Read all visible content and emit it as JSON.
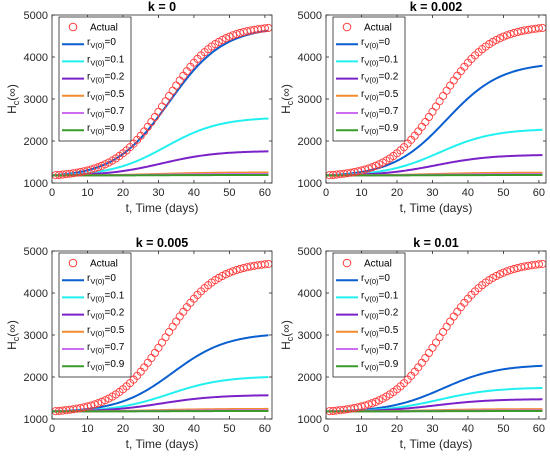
{
  "chart_data": [
    {
      "type": "line",
      "title": "k = 0",
      "xlabel": "t, Time (days)",
      "ylabel": {
        "main": "H",
        "sub": "c",
        "suffix": "(∞)"
      },
      "xlim": [
        0,
        62
      ],
      "ylim": [
        1000,
        5000
      ],
      "xticks": [
        "0",
        "10",
        "20",
        "30",
        "40",
        "50",
        "60"
      ],
      "yticks": [
        "1000",
        "2000",
        "3000",
        "4000",
        "5000"
      ],
      "legend": "top-left",
      "actual": {
        "name": "Actual",
        "color": "#ff3b3b",
        "x0": 1,
        "x1": 61,
        "start": 1180,
        "end": 4700,
        "mid": 32,
        "rate": 0.14
      },
      "series": [
        {
          "label_main": "r",
          "label_sub": "V(0)",
          "label_tail": "=0",
          "color": "#0a5fd0",
          "start": 1180,
          "end": 4640,
          "mid": 33,
          "rate": 0.13
        },
        {
          "label_main": "r",
          "label_sub": "V(0)",
          "label_tail": "=0.1",
          "color": "#22f0f0",
          "start": 1180,
          "end": 2540,
          "mid": 32,
          "rate": 0.13
        },
        {
          "label_main": "r",
          "label_sub": "V(0)",
          "label_tail": "=0.2",
          "color": "#7b21c8",
          "start": 1180,
          "end": 1755,
          "mid": 31,
          "rate": 0.13
        },
        {
          "label_main": "r",
          "label_sub": "V(0)",
          "label_tail": "=0.5",
          "color": "#f28c2e",
          "start": 1180,
          "end": 1250,
          "mid": 30,
          "rate": 0.13
        },
        {
          "label_main": "r",
          "label_sub": "V(0)",
          "label_tail": "=0.7",
          "color": "#cc6cf0",
          "start": 1180,
          "end": 1215,
          "mid": 30,
          "rate": 0.13
        },
        {
          "label_main": "r",
          "label_sub": "V(0)",
          "label_tail": "=0.9",
          "color": "#3a9a2a",
          "start": 1180,
          "end": 1190,
          "mid": 30,
          "rate": 0.13
        }
      ]
    },
    {
      "type": "line",
      "title": "k = 0.002",
      "xlabel": "t, Time (days)",
      "ylabel": {
        "main": "H",
        "sub": "c",
        "suffix": "(∞)"
      },
      "xlim": [
        0,
        62
      ],
      "ylim": [
        1000,
        5000
      ],
      "xticks": [
        "0",
        "10",
        "20",
        "30",
        "40",
        "50",
        "60"
      ],
      "yticks": [
        "1000",
        "2000",
        "3000",
        "4000",
        "5000"
      ],
      "legend": "top-left",
      "actual": {
        "name": "Actual",
        "color": "#ff3b3b",
        "x0": 1,
        "x1": 61,
        "start": 1180,
        "end": 4700,
        "mid": 32,
        "rate": 0.14
      },
      "series": [
        {
          "label_main": "r",
          "label_sub": "V(0)",
          "label_tail": "=0",
          "color": "#0a5fd0",
          "start": 1180,
          "end": 3800,
          "mid": 34,
          "rate": 0.13
        },
        {
          "label_main": "r",
          "label_sub": "V(0)",
          "label_tail": "=0.1",
          "color": "#22f0f0",
          "start": 1180,
          "end": 2270,
          "mid": 32,
          "rate": 0.13
        },
        {
          "label_main": "r",
          "label_sub": "V(0)",
          "label_tail": "=0.2",
          "color": "#7b21c8",
          "start": 1180,
          "end": 1665,
          "mid": 31,
          "rate": 0.13
        },
        {
          "label_main": "r",
          "label_sub": "V(0)",
          "label_tail": "=0.5",
          "color": "#f28c2e",
          "start": 1180,
          "end": 1245,
          "mid": 30,
          "rate": 0.13
        },
        {
          "label_main": "r",
          "label_sub": "V(0)",
          "label_tail": "=0.7",
          "color": "#cc6cf0",
          "start": 1180,
          "end": 1212,
          "mid": 30,
          "rate": 0.13
        },
        {
          "label_main": "r",
          "label_sub": "V(0)",
          "label_tail": "=0.9",
          "color": "#3a9a2a",
          "start": 1180,
          "end": 1190,
          "mid": 30,
          "rate": 0.13
        }
      ]
    },
    {
      "type": "line",
      "title": "k = 0.005",
      "xlabel": "t, Time (days)",
      "ylabel": {
        "main": "H",
        "sub": "c",
        "suffix": "(∞)"
      },
      "xlim": [
        0,
        62
      ],
      "ylim": [
        1000,
        5000
      ],
      "xticks": [
        "0",
        "10",
        "20",
        "30",
        "40",
        "50",
        "60"
      ],
      "yticks": [
        "1000",
        "2000",
        "3000",
        "4000",
        "5000"
      ],
      "legend": "top-left",
      "actual": {
        "name": "Actual",
        "color": "#ff3b3b",
        "x0": 1,
        "x1": 61,
        "start": 1180,
        "end": 4700,
        "mid": 32,
        "rate": 0.14
      },
      "series": [
        {
          "label_main": "r",
          "label_sub": "V(0)",
          "label_tail": "=0",
          "color": "#0a5fd0",
          "start": 1180,
          "end": 3000,
          "mid": 34,
          "rate": 0.13
        },
        {
          "label_main": "r",
          "label_sub": "V(0)",
          "label_tail": "=0.1",
          "color": "#22f0f0",
          "start": 1180,
          "end": 2000,
          "mid": 33,
          "rate": 0.13
        },
        {
          "label_main": "r",
          "label_sub": "V(0)",
          "label_tail": "=0.2",
          "color": "#7b21c8",
          "start": 1180,
          "end": 1565,
          "mid": 31,
          "rate": 0.13
        },
        {
          "label_main": "r",
          "label_sub": "V(0)",
          "label_tail": "=0.5",
          "color": "#f28c2e",
          "start": 1180,
          "end": 1240,
          "mid": 30,
          "rate": 0.13
        },
        {
          "label_main": "r",
          "label_sub": "V(0)",
          "label_tail": "=0.7",
          "color": "#cc6cf0",
          "start": 1180,
          "end": 1208,
          "mid": 30,
          "rate": 0.13
        },
        {
          "label_main": "r",
          "label_sub": "V(0)",
          "label_tail": "=0.9",
          "color": "#3a9a2a",
          "start": 1180,
          "end": 1190,
          "mid": 30,
          "rate": 0.13
        }
      ]
    },
    {
      "type": "line",
      "title": "k = 0.01",
      "xlabel": "t, Time (days)",
      "ylabel": {
        "main": "H",
        "sub": "c",
        "suffix": "(∞)"
      },
      "xlim": [
        0,
        62
      ],
      "ylim": [
        1000,
        5000
      ],
      "xticks": [
        "0",
        "10",
        "20",
        "30",
        "40",
        "50",
        "60"
      ],
      "yticks": [
        "1000",
        "2000",
        "3000",
        "4000",
        "5000"
      ],
      "legend": "top-left",
      "actual": {
        "name": "Actual",
        "color": "#ff3b3b",
        "x0": 1,
        "x1": 61,
        "start": 1180,
        "end": 4700,
        "mid": 32,
        "rate": 0.14
      },
      "series": [
        {
          "label_main": "r",
          "label_sub": "V(0)",
          "label_tail": "=0",
          "color": "#0a5fd0",
          "start": 1180,
          "end": 2270,
          "mid": 33,
          "rate": 0.13
        },
        {
          "label_main": "r",
          "label_sub": "V(0)",
          "label_tail": "=0.1",
          "color": "#22f0f0",
          "start": 1180,
          "end": 1740,
          "mid": 32,
          "rate": 0.13
        },
        {
          "label_main": "r",
          "label_sub": "V(0)",
          "label_tail": "=0.2",
          "color": "#7b21c8",
          "start": 1180,
          "end": 1470,
          "mid": 31,
          "rate": 0.13
        },
        {
          "label_main": "r",
          "label_sub": "V(0)",
          "label_tail": "=0.5",
          "color": "#f28c2e",
          "start": 1180,
          "end": 1235,
          "mid": 30,
          "rate": 0.13
        },
        {
          "label_main": "r",
          "label_sub": "V(0)",
          "label_tail": "=0.7",
          "color": "#cc6cf0",
          "start": 1180,
          "end": 1205,
          "mid": 30,
          "rate": 0.13
        },
        {
          "label_main": "r",
          "label_sub": "V(0)",
          "label_tail": "=0.9",
          "color": "#3a9a2a",
          "start": 1180,
          "end": 1190,
          "mid": 30,
          "rate": 0.13
        }
      ]
    }
  ]
}
